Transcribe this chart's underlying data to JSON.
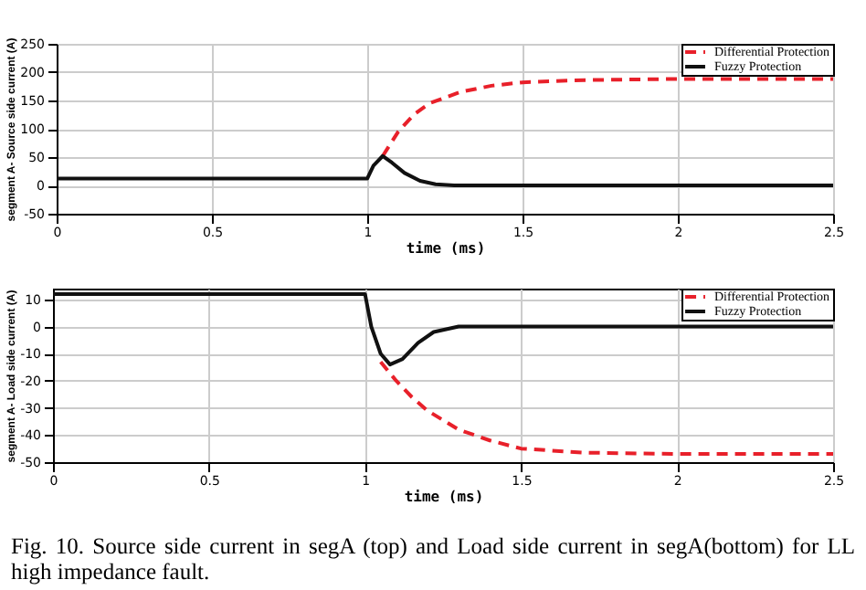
{
  "chart_data": [
    {
      "type": "line",
      "xlabel": "time (ms)",
      "ylabel": "segment A- Source side current (A)",
      "xlim": [
        0,
        2.5
      ],
      "xticks": [
        0,
        0.5,
        1,
        1.5,
        2,
        2.5
      ],
      "ylim": [
        -50,
        250
      ],
      "yticks": [
        -50,
        0,
        50,
        100,
        150,
        200,
        250
      ],
      "grid": true,
      "legend": "top right",
      "series": [
        {
          "name": "Differential Protection",
          "color": "#e8202a",
          "line_style": "dashed",
          "x": [
            1.05,
            1.1,
            1.15,
            1.2,
            1.3,
            1.4,
            1.5,
            1.7,
            2.0,
            2.5
          ],
          "values": [
            52,
            95,
            125,
            145,
            165,
            176,
            182,
            186,
            188,
            188
          ]
        },
        {
          "name": "Fuzzy Protection",
          "color": "#111111",
          "line_style": "solid",
          "x": [
            0,
            1.0,
            1.02,
            1.05,
            1.08,
            1.12,
            1.17,
            1.22,
            1.28,
            2.5
          ],
          "values": [
            12,
            12,
            35,
            52,
            40,
            22,
            8,
            2,
            0,
            0
          ]
        }
      ]
    },
    {
      "type": "line",
      "xlabel": "time (ms)",
      "ylabel": "segment A- Load side current (A)",
      "xlim": [
        0,
        2.5
      ],
      "xticks": [
        0,
        0.5,
        1,
        1.5,
        2,
        2.5
      ],
      "ylim": [
        -50,
        14
      ],
      "yticks": [
        -50,
        -40,
        -30,
        -20,
        -10,
        0,
        10
      ],
      "grid": true,
      "legend": "top right",
      "annotations": [
        "Fig.   10. Source side current in segA (top) and Load side current in segA(bottom) for LL high impedance fault."
      ],
      "series": [
        {
          "name": "Differential Protection",
          "color": "#e8202a",
          "line_style": "dashed",
          "x": [
            1.05,
            1.1,
            1.15,
            1.2,
            1.3,
            1.4,
            1.5,
            1.7,
            2.0,
            2.5
          ],
          "values": [
            -13,
            -20,
            -26,
            -31,
            -38,
            -42,
            -45,
            -46.5,
            -47,
            -47
          ]
        },
        {
          "name": "Fuzzy Protection",
          "color": "#111111",
          "line_style": "solid",
          "x": [
            0,
            1.0,
            1.02,
            1.05,
            1.08,
            1.12,
            1.17,
            1.22,
            1.3,
            1.5,
            2.5
          ],
          "values": [
            12,
            12,
            0,
            -10,
            -14,
            -12,
            -6,
            -2,
            0,
            0,
            0
          ]
        }
      ]
    }
  ]
}
